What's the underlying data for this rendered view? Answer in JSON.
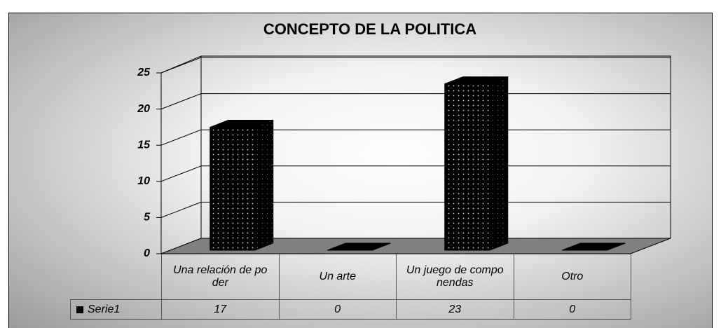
{
  "chart_data": {
    "type": "bar3d",
    "title": "CONCEPTO DE LA POLITICA",
    "categories": [
      "Una relación de poder",
      "Un arte",
      "Un juego de componendas",
      "Otro"
    ],
    "series": [
      {
        "name": "Serie1",
        "color": "#000000",
        "values": [
          17,
          0,
          23,
          0
        ]
      }
    ],
    "ylim": [
      0,
      25
    ],
    "yticks": [
      0,
      5,
      10,
      15,
      20,
      25
    ],
    "grid": true,
    "data_table": true
  }
}
